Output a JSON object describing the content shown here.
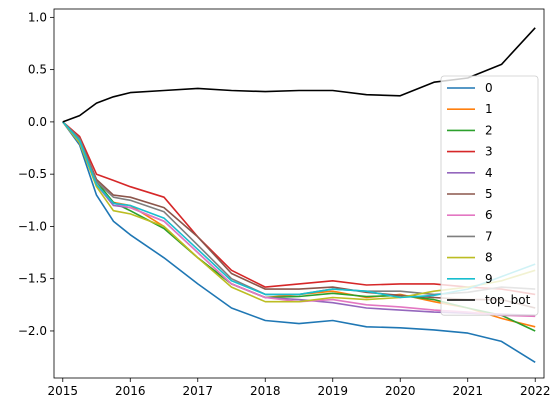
{
  "chart_data": {
    "type": "line",
    "title": "",
    "xlabel": "",
    "ylabel": "",
    "xlim": [
      2014.87,
      2022.13
    ],
    "ylim": [
      -2.45,
      1.08
    ],
    "x_ticks": [
      2015,
      2016,
      2017,
      2018,
      2019,
      2020,
      2021,
      2022
    ],
    "x_tick_labels": [
      "2015",
      "2016",
      "2017",
      "2018",
      "2019",
      "2020",
      "2021",
      "2022"
    ],
    "y_ticks": [
      1.0,
      0.5,
      0.0,
      -0.5,
      -1.0,
      -1.5,
      -2.0
    ],
    "y_tick_labels": [
      "1.0",
      "0.5",
      "0.0",
      "−0.5",
      "−1.0",
      "−1.5",
      "−2.0"
    ],
    "grid": false,
    "legend_placement": "right",
    "x": [
      2015.0,
      2015.25,
      2015.5,
      2015.75,
      2016.0,
      2016.5,
      2017.0,
      2017.5,
      2018.0,
      2018.5,
      2019.0,
      2019.5,
      2020.0,
      2020.5,
      2021.0,
      2021.5,
      2022.0
    ],
    "series": [
      {
        "name": "0",
        "color": "#1f77b4",
        "values": [
          0.0,
          -0.22,
          -0.7,
          -0.95,
          -1.08,
          -1.3,
          -1.55,
          -1.78,
          -1.9,
          -1.93,
          -1.9,
          -1.96,
          -1.97,
          -1.99,
          -2.02,
          -2.1,
          -2.3
        ]
      },
      {
        "name": "1",
        "color": "#ff7f0e",
        "values": [
          0.0,
          -0.2,
          -0.6,
          -0.77,
          -0.8,
          -1.0,
          -1.3,
          -1.55,
          -1.68,
          -1.65,
          -1.62,
          -1.68,
          -1.65,
          -1.72,
          -1.78,
          -1.88,
          -1.96
        ]
      },
      {
        "name": "2",
        "color": "#2ca02c",
        "values": [
          0.0,
          -0.18,
          -0.57,
          -0.77,
          -0.85,
          -1.02,
          -1.3,
          -1.55,
          -1.68,
          -1.67,
          -1.64,
          -1.67,
          -1.66,
          -1.7,
          -1.78,
          -1.85,
          -2.0
        ]
      },
      {
        "name": "3",
        "color": "#d62728",
        "values": [
          0.0,
          -0.14,
          -0.5,
          -0.56,
          -0.62,
          -0.72,
          -1.1,
          -1.42,
          -1.58,
          -1.55,
          -1.52,
          -1.56,
          -1.55,
          -1.55,
          -1.58,
          -1.6,
          -1.65
        ]
      },
      {
        "name": "4",
        "color": "#9467bd",
        "values": [
          0.0,
          -0.2,
          -0.6,
          -0.8,
          -0.82,
          -0.95,
          -1.25,
          -1.55,
          -1.68,
          -1.7,
          -1.73,
          -1.78,
          -1.8,
          -1.82,
          -1.83,
          -1.84,
          -1.85
        ]
      },
      {
        "name": "5",
        "color": "#8c564b",
        "values": [
          0.0,
          -0.16,
          -0.55,
          -0.7,
          -0.72,
          -0.82,
          -1.1,
          -1.45,
          -1.6,
          -1.6,
          -1.58,
          -1.63,
          -1.66,
          -1.68,
          -1.7,
          -1.7,
          -1.78
        ]
      },
      {
        "name": "6",
        "color": "#e377c2",
        "values": [
          0.0,
          -0.18,
          -0.6,
          -0.78,
          -0.82,
          -0.95,
          -1.25,
          -1.55,
          -1.68,
          -1.72,
          -1.7,
          -1.75,
          -1.77,
          -1.8,
          -1.82,
          -1.85,
          -1.86
        ]
      },
      {
        "name": "7",
        "color": "#7f7f7f",
        "values": [
          0.0,
          -0.16,
          -0.57,
          -0.72,
          -0.75,
          -0.86,
          -1.18,
          -1.5,
          -1.65,
          -1.65,
          -1.6,
          -1.62,
          -1.62,
          -1.65,
          -1.63,
          -1.58,
          -1.6
        ]
      },
      {
        "name": "8",
        "color": "#bcbd22",
        "values": [
          0.0,
          -0.2,
          -0.62,
          -0.85,
          -0.88,
          -1.0,
          -1.3,
          -1.58,
          -1.72,
          -1.72,
          -1.68,
          -1.7,
          -1.68,
          -1.62,
          -1.58,
          -1.52,
          -1.42
        ]
      },
      {
        "name": "9",
        "color": "#17becf",
        "values": [
          0.0,
          -0.18,
          -0.6,
          -0.78,
          -0.8,
          -0.92,
          -1.22,
          -1.52,
          -1.65,
          -1.65,
          -1.6,
          -1.62,
          -1.68,
          -1.66,
          -1.6,
          -1.48,
          -1.36
        ]
      },
      {
        "name": "top_bot",
        "color": "#000000",
        "values": [
          0.0,
          0.06,
          0.18,
          0.24,
          0.28,
          0.3,
          0.32,
          0.3,
          0.29,
          0.3,
          0.3,
          0.26,
          0.25,
          0.38,
          0.42,
          0.55,
          0.9
        ]
      }
    ]
  }
}
